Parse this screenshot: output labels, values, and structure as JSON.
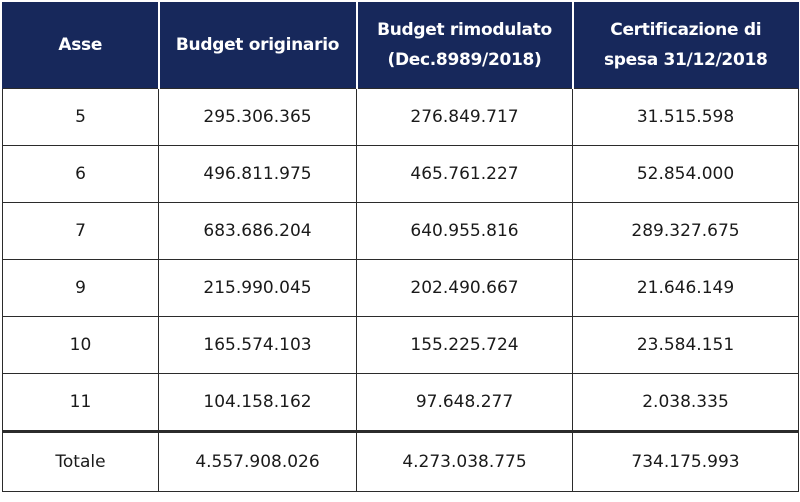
{
  "table": {
    "headers": [
      {
        "lines": [
          "Asse"
        ]
      },
      {
        "lines": [
          "Budget originario"
        ]
      },
      {
        "lines": [
          "Budget rimodulato",
          "(Dec.8989/2018)"
        ]
      },
      {
        "lines": [
          "Certificazione di",
          "spesa 31/12/2018"
        ]
      }
    ],
    "rows": [
      {
        "asse": "5",
        "originario": "295.306.365",
        "rimodulato": "276.849.717",
        "certificazione": "31.515.598"
      },
      {
        "asse": "6",
        "originario": "496.811.975",
        "rimodulato": "465.761.227",
        "certificazione": "52.854.000"
      },
      {
        "asse": "7",
        "originario": "683.686.204",
        "rimodulato": "640.955.816",
        "certificazione": "289.327.675"
      },
      {
        "asse": "9",
        "originario": "215.990.045",
        "rimodulato": "202.490.667",
        "certificazione": "21.646.149"
      },
      {
        "asse": "10",
        "originario": "165.574.103",
        "rimodulato": "155.225.724",
        "certificazione": "23.584.151"
      },
      {
        "asse": "11",
        "originario": "104.158.162",
        "rimodulato": "97.648.277",
        "certificazione": "2.038.335"
      }
    ],
    "total": {
      "asse": "Totale",
      "originario": "4.557.908.026",
      "rimodulato": "4.273.038.775",
      "certificazione": "734.175.993"
    }
  },
  "colors": {
    "header_background": "#17285b",
    "header_text": "#ffffff",
    "body_text": "#1a1a1a",
    "border": "#2b2b2b"
  }
}
